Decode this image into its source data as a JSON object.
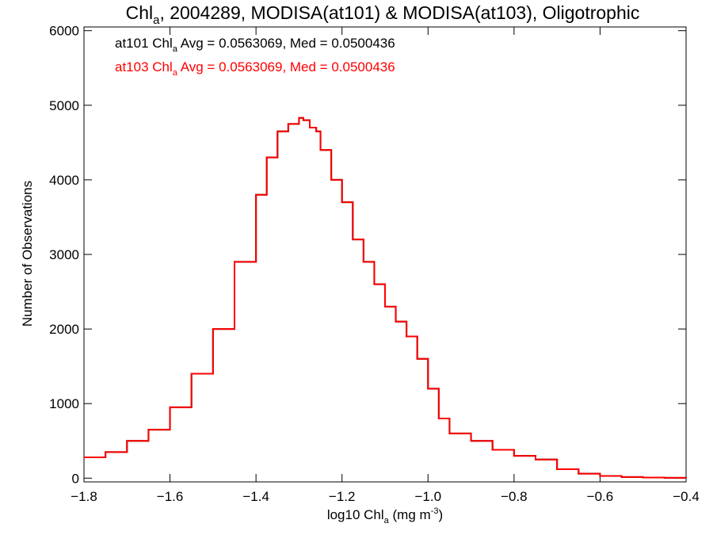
{
  "colors": {
    "series_at101": "#000000",
    "series_at103": "#ff0000",
    "axis": "#000000",
    "background": "#ffffff"
  },
  "chart_data": {
    "type": "line",
    "title": {
      "main": "Chl",
      "sub": "a",
      "rest": ", 2004289, MODISA(at101) & MODISA(at103), Oligotrophic"
    },
    "xlabel": {
      "main": "log10 Chl",
      "sub": "a",
      "rest": " (mg m",
      "sup": "-3",
      "close": ")"
    },
    "ylabel": "Number of Observations",
    "xlim": [
      -1.8,
      -0.4
    ],
    "ylim": [
      -50,
      6050
    ],
    "xticks": [
      -1.8,
      -1.6,
      -1.4,
      -1.2,
      -1.0,
      -0.8,
      -0.6,
      -0.4
    ],
    "xtick_labels": [
      "−1.8",
      "−1.6",
      "−1.4",
      "−1.2",
      "−1.0",
      "−0.8",
      "−0.6",
      "−0.4"
    ],
    "yticks": [
      0,
      1000,
      2000,
      3000,
      4000,
      5000,
      6000
    ],
    "ytick_labels": [
      "0",
      "1000",
      "2000",
      "3000",
      "4000",
      "5000",
      "6000"
    ],
    "grid": false,
    "legend_position": "top-left",
    "legend": [
      {
        "label": "at101 Chl",
        "sub": "a",
        "stats": " Avg = 0.0563069, Med = 0.0500436",
        "color": "#000000"
      },
      {
        "label": "at103 Chl",
        "sub": "a",
        "stats": " Avg = 0.0563069, Med = 0.0500436",
        "color": "#ff0000"
      }
    ],
    "step": "histogram",
    "series": [
      {
        "name": "at101",
        "color": "#000000",
        "x": [
          -1.8,
          -1.75,
          -1.7,
          -1.65,
          -1.6,
          -1.55,
          -1.5,
          -1.45,
          -1.4,
          -1.375,
          -1.35,
          -1.325,
          -1.3,
          -1.29,
          -1.275,
          -1.26,
          -1.25,
          -1.225,
          -1.2,
          -1.175,
          -1.15,
          -1.125,
          -1.1,
          -1.075,
          -1.05,
          -1.025,
          -1.0,
          -0.975,
          -0.95,
          -0.9,
          -0.85,
          -0.8,
          -0.75,
          -0.7,
          -0.65,
          -0.6,
          -0.55,
          -0.5,
          -0.45,
          -0.4
        ],
        "y": [
          280,
          350,
          500,
          650,
          950,
          1400,
          2000,
          2900,
          3800,
          4300,
          4650,
          4750,
          4830,
          4800,
          4700,
          4650,
          4400,
          4000,
          3700,
          3200,
          2900,
          2600,
          2300,
          2100,
          1900,
          1600,
          1200,
          800,
          600,
          500,
          380,
          300,
          250,
          120,
          60,
          30,
          15,
          8,
          5,
          3
        ]
      },
      {
        "name": "at103",
        "color": "#ff0000",
        "x": [
          -1.8,
          -1.75,
          -1.7,
          -1.65,
          -1.6,
          -1.55,
          -1.5,
          -1.45,
          -1.4,
          -1.375,
          -1.35,
          -1.325,
          -1.3,
          -1.29,
          -1.275,
          -1.26,
          -1.25,
          -1.225,
          -1.2,
          -1.175,
          -1.15,
          -1.125,
          -1.1,
          -1.075,
          -1.05,
          -1.025,
          -1.0,
          -0.975,
          -0.95,
          -0.9,
          -0.85,
          -0.8,
          -0.75,
          -0.7,
          -0.65,
          -0.6,
          -0.55,
          -0.5,
          -0.45,
          -0.4
        ],
        "y": [
          280,
          350,
          500,
          650,
          950,
          1400,
          2000,
          2900,
          3800,
          4300,
          4650,
          4750,
          4830,
          4800,
          4700,
          4650,
          4400,
          4000,
          3700,
          3200,
          2900,
          2600,
          2300,
          2100,
          1900,
          1600,
          1200,
          800,
          600,
          500,
          380,
          300,
          250,
          120,
          60,
          30,
          15,
          8,
          5,
          3
        ]
      }
    ]
  }
}
